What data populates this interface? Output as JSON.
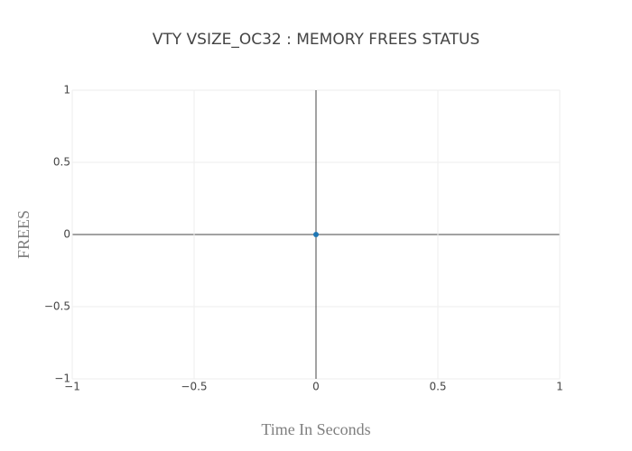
{
  "chart_data": {
    "type": "scatter",
    "title": "VTY VSIZE_OC32 : MEMORY FREES STATUS",
    "x_label": "Time In Seconds",
    "y_label": "FREES",
    "series": [
      {
        "color": "#1f77b4",
        "x": [
          0
        ],
        "values": [
          0
        ]
      }
    ],
    "xlim": [
      -1,
      1
    ],
    "ylim": [
      -1,
      1
    ],
    "xticks": [
      {
        "value": -1,
        "label": "−1"
      },
      {
        "value": -0.5,
        "label": "−0.5"
      },
      0,
      0.5,
      1
    ],
    "yticks": [
      {
        "value": -1,
        "label": "−1"
      },
      {
        "value": -0.5,
        "label": "−0.5"
      },
      0,
      0.5,
      1
    ],
    "grid": true
  }
}
